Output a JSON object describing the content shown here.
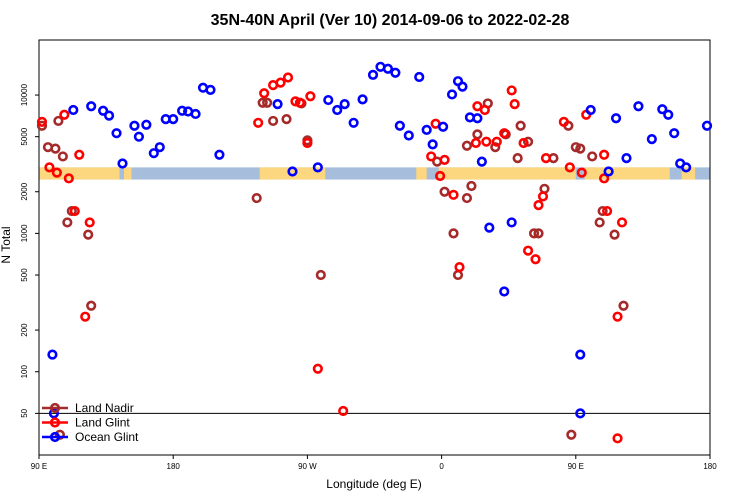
{
  "chart_data": {
    "type": "scatter",
    "title": "35N-40N April (Ver 10)   2014-09-06 to 2022-02-28",
    "xlabel": "Longitude (deg E)",
    "ylabel": "N Total",
    "x_axis_range_deg_east_unwrapped": [
      90,
      540
    ],
    "x_ticks": [
      {
        "value": 90,
        "label": "90 E"
      },
      {
        "value": 180,
        "label": "180"
      },
      {
        "value": 270,
        "label": "90 W"
      },
      {
        "value": 360,
        "label": "0"
      },
      {
        "value": 450,
        "label": "90 E"
      },
      {
        "value": 540,
        "label": "180"
      }
    ],
    "y_scale": "log",
    "y_axis_range": [
      25,
      25000
    ],
    "y_ticks": [
      {
        "value": 50,
        "label": "50"
      },
      {
        "value": 100,
        "label": "100"
      },
      {
        "value": 200,
        "label": "200"
      },
      {
        "value": 500,
        "label": "500"
      },
      {
        "value": 1000,
        "label": "1000"
      },
      {
        "value": 2000,
        "label": "2000"
      },
      {
        "value": 5000,
        "label": "5000"
      },
      {
        "value": 10000,
        "label": "10000"
      }
    ],
    "reference_line_y": 50,
    "land_ocean_strip": {
      "y_range": [
        2450,
        3000
      ],
      "land_color": "#fcd77f",
      "ocean_color": "#a6bddb",
      "land_segments_lon": [
        [
          90,
          144
        ],
        [
          147,
          152
        ],
        [
          238,
          282
        ],
        [
          343,
          350
        ],
        [
          358,
          450
        ],
        [
          456,
          513
        ],
        [
          521,
          530
        ]
      ]
    },
    "legend_position": "bottom-left",
    "series": [
      {
        "name": "Land Nadir",
        "color": "#a52a2a",
        "points": [
          [
            92,
            6000
          ],
          [
            96,
            4200
          ],
          [
            101,
            4100
          ],
          [
            103,
            6500
          ],
          [
            106,
            3600
          ],
          [
            109,
            1200
          ],
          [
            112,
            1450
          ],
          [
            123,
            980
          ],
          [
            125,
            300
          ],
          [
            104,
            35
          ],
          [
            236,
            1800
          ],
          [
            240,
            8800
          ],
          [
            243,
            8800
          ],
          [
            247,
            6500
          ],
          [
            256,
            6700
          ],
          [
            266,
            8700
          ],
          [
            270,
            4700
          ],
          [
            279,
            500
          ],
          [
            357,
            3300
          ],
          [
            362,
            2000
          ],
          [
            368,
            1000
          ],
          [
            371,
            500
          ],
          [
            377,
            1800
          ],
          [
            380,
            2200
          ],
          [
            377,
            4300
          ],
          [
            384,
            5200
          ],
          [
            391,
            8700
          ],
          [
            396,
            4200
          ],
          [
            403,
            5200
          ],
          [
            411,
            3500
          ],
          [
            413,
            6000
          ],
          [
            418,
            4600
          ],
          [
            422,
            1000
          ],
          [
            425,
            1000
          ],
          [
            429,
            2100
          ],
          [
            435,
            3500
          ],
          [
            445,
            6000
          ],
          [
            450,
            4200
          ],
          [
            453,
            4100
          ],
          [
            461,
            3600
          ],
          [
            466,
            1200
          ],
          [
            468,
            1450
          ],
          [
            476,
            980
          ],
          [
            482,
            300
          ],
          [
            447,
            35
          ]
        ]
      },
      {
        "name": "Land Glint",
        "color": "#ff0000",
        "points": [
          [
            92,
            6400
          ],
          [
            97,
            3000
          ],
          [
            102,
            2750
          ],
          [
            107,
            7200
          ],
          [
            110,
            2500
          ],
          [
            114,
            1450
          ],
          [
            117,
            3700
          ],
          [
            121,
            250
          ],
          [
            124,
            1200
          ],
          [
            237,
            6300
          ],
          [
            241,
            10300
          ],
          [
            247,
            11800
          ],
          [
            252,
            12300
          ],
          [
            257,
            13400
          ],
          [
            262,
            9000
          ],
          [
            265,
            8800
          ],
          [
            270,
            4500
          ],
          [
            272,
            9800
          ],
          [
            277,
            105
          ],
          [
            294,
            52
          ],
          [
            353,
            3600
          ],
          [
            356,
            6200
          ],
          [
            359,
            2600
          ],
          [
            362,
            3400
          ],
          [
            368,
            1900
          ],
          [
            372,
            570
          ],
          [
            383,
            4500
          ],
          [
            384,
            8300
          ],
          [
            389,
            7800
          ],
          [
            390,
            4600
          ],
          [
            397,
            4600
          ],
          [
            402,
            5300
          ],
          [
            407,
            10800
          ],
          [
            409,
            8600
          ],
          [
            415,
            4500
          ],
          [
            418,
            750
          ],
          [
            423,
            650
          ],
          [
            425,
            1600
          ],
          [
            428,
            1850
          ],
          [
            430,
            3500
          ],
          [
            442,
            6400
          ],
          [
            446,
            3000
          ],
          [
            454,
            2750
          ],
          [
            457,
            7200
          ],
          [
            469,
            2500
          ],
          [
            471,
            1450
          ],
          [
            469,
            3700
          ],
          [
            478,
            250
          ],
          [
            481,
            1200
          ],
          [
            478,
            33
          ]
        ]
      },
      {
        "name": "Ocean Glint",
        "color": "#0000ff",
        "points": [
          [
            99,
            133
          ],
          [
            100,
            50
          ],
          [
            113,
            7800
          ],
          [
            125,
            8300
          ],
          [
            133,
            7700
          ],
          [
            137,
            7100
          ],
          [
            142,
            5300
          ],
          [
            146,
            3200
          ],
          [
            154,
            6000
          ],
          [
            157,
            5000
          ],
          [
            162,
            6100
          ],
          [
            167,
            3800
          ],
          [
            171,
            4200
          ],
          [
            175,
            6700
          ],
          [
            180,
            6700
          ],
          [
            186,
            7700
          ],
          [
            190,
            7600
          ],
          [
            195,
            7300
          ],
          [
            200,
            11300
          ],
          [
            205,
            10900
          ],
          [
            211,
            3700
          ],
          [
            250,
            8600
          ],
          [
            260,
            2800
          ],
          [
            277,
            3000
          ],
          [
            284,
            9200
          ],
          [
            290,
            7800
          ],
          [
            295,
            8600
          ],
          [
            301,
            6300
          ],
          [
            307,
            9300
          ],
          [
            314,
            14000
          ],
          [
            319,
            16000
          ],
          [
            324,
            15500
          ],
          [
            329,
            14500
          ],
          [
            332,
            6000
          ],
          [
            338,
            5100
          ],
          [
            345,
            13500
          ],
          [
            350,
            5600
          ],
          [
            354,
            4400
          ],
          [
            361,
            5900
          ],
          [
            367,
            10100
          ],
          [
            371,
            12600
          ],
          [
            374,
            11500
          ],
          [
            379,
            6900
          ],
          [
            384,
            6800
          ],
          [
            387,
            3300
          ],
          [
            392,
            1100
          ],
          [
            402,
            380
          ],
          [
            407,
            1200
          ],
          [
            453,
            133
          ],
          [
            453,
            50
          ],
          [
            460,
            7800
          ],
          [
            472,
            2800
          ],
          [
            477,
            6800
          ],
          [
            484,
            3500
          ],
          [
            492,
            8300
          ],
          [
            501,
            4800
          ],
          [
            508,
            7900
          ],
          [
            512,
            7200
          ],
          [
            516,
            5300
          ],
          [
            520,
            3200
          ],
          [
            524,
            3000
          ],
          [
            538,
            6000
          ]
        ]
      }
    ]
  }
}
